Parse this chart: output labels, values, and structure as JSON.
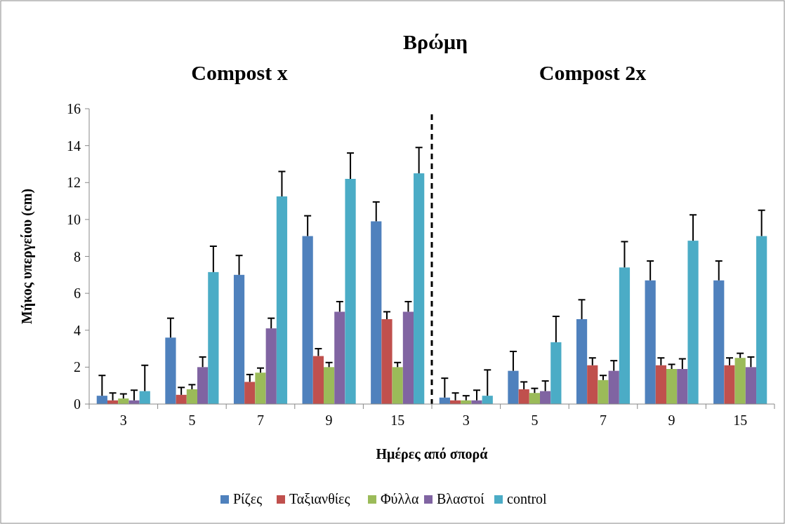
{
  "chart_data": {
    "type": "bar",
    "title": "Βρώμη",
    "annotations": [
      "Compost x",
      "Compost 2x"
    ],
    "xlabel": "Ημέρες από σπορά",
    "ylabel": "Μήκος υπεργείου (cm)",
    "categories": [
      "3",
      "5",
      "7",
      "9",
      "15",
      "3",
      "5",
      "7",
      "9",
      "15"
    ],
    "ylim": [
      0,
      16
    ],
    "yticks": [
      0,
      2,
      4,
      6,
      8,
      10,
      12,
      14,
      16
    ],
    "legend": "bottom",
    "series": [
      {
        "name": "Ρίζες",
        "color": "#4f81bd",
        "values": [
          0.45,
          3.6,
          7.0,
          9.1,
          9.9,
          0.35,
          1.8,
          4.6,
          6.7,
          6.7
        ],
        "errors": [
          [
            0.45,
            1.55
          ],
          [
            3.6,
            4.65
          ],
          [
            7.0,
            8.05
          ],
          [
            9.1,
            10.2
          ],
          [
            9.9,
            10.95
          ],
          [
            0.35,
            1.4
          ],
          [
            1.8,
            2.85
          ],
          [
            4.6,
            5.65
          ],
          [
            6.7,
            7.75
          ],
          [
            6.7,
            7.75
          ]
        ]
      },
      {
        "name": "Ταξιανθίες",
        "color": "#c0504d",
        "values": [
          0.2,
          0.5,
          1.2,
          2.6,
          4.6,
          0.2,
          0.8,
          2.1,
          2.1,
          2.1
        ],
        "errors": [
          [
            0.2,
            0.6
          ],
          [
            0.5,
            0.9
          ],
          [
            1.2,
            1.6
          ],
          [
            2.6,
            3.0
          ],
          [
            4.6,
            5.0
          ],
          [
            0.2,
            0.6
          ],
          [
            0.8,
            1.2
          ],
          [
            2.1,
            2.5
          ],
          [
            2.1,
            2.5
          ],
          [
            2.1,
            2.5
          ]
        ]
      },
      {
        "name": "Φύλλα",
        "color": "#9bbb59",
        "values": [
          0.3,
          0.8,
          1.7,
          2.0,
          2.0,
          0.2,
          0.6,
          1.3,
          1.9,
          2.5
        ],
        "errors": [
          [
            0.3,
            0.55
          ],
          [
            0.8,
            1.05
          ],
          [
            1.7,
            1.95
          ],
          [
            2.0,
            2.25
          ],
          [
            2.0,
            2.25
          ],
          [
            0.2,
            0.45
          ],
          [
            0.6,
            0.85
          ],
          [
            1.3,
            1.55
          ],
          [
            1.9,
            2.15
          ],
          [
            2.5,
            2.75
          ]
        ]
      },
      {
        "name": "Βλαστοί",
        "color": "#8064a2",
        "values": [
          0.2,
          2.0,
          4.1,
          5.0,
          5.0,
          0.2,
          0.7,
          1.8,
          1.9,
          2.0
        ],
        "errors": [
          [
            0.2,
            0.75
          ],
          [
            2.0,
            2.55
          ],
          [
            4.1,
            4.65
          ],
          [
            5.0,
            5.55
          ],
          [
            5.0,
            5.55
          ],
          [
            0.2,
            0.75
          ],
          [
            0.7,
            1.25
          ],
          [
            1.8,
            2.35
          ],
          [
            1.9,
            2.45
          ],
          [
            2.0,
            2.55
          ]
        ]
      },
      {
        "name": "control",
        "color": "#4bacc6",
        "values": [
          0.7,
          7.15,
          11.25,
          12.2,
          12.5,
          0.45,
          3.35,
          7.4,
          8.85,
          9.1
        ],
        "errors": [
          [
            0.7,
            2.1
          ],
          [
            7.15,
            8.55
          ],
          [
            11.25,
            12.6
          ],
          [
            12.2,
            13.6
          ],
          [
            12.5,
            13.9
          ],
          [
            0.45,
            1.85
          ],
          [
            3.35,
            4.75
          ],
          [
            7.4,
            8.8
          ],
          [
            8.85,
            10.25
          ],
          [
            9.1,
            10.5
          ]
        ]
      }
    ]
  }
}
